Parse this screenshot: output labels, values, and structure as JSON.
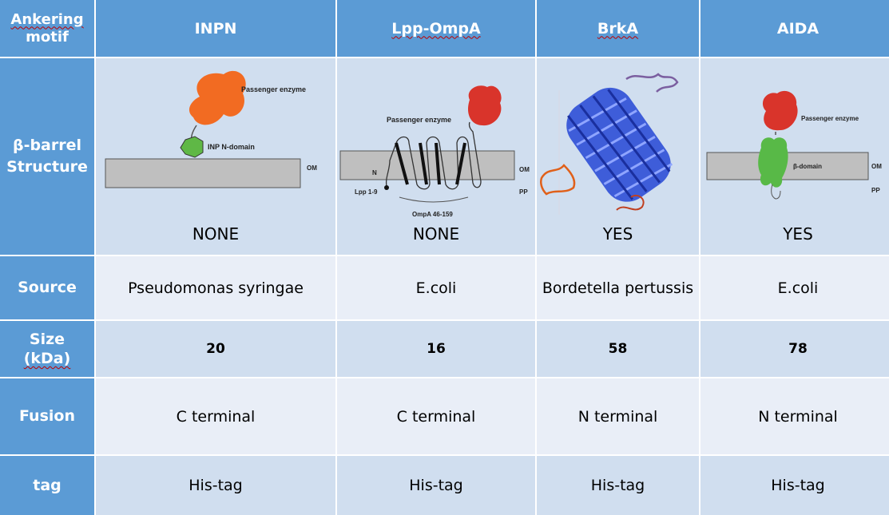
{
  "header": {
    "corner": [
      "Ankering",
      "motif"
    ],
    "columns": [
      "INPN",
      "Lpp-OmpA",
      "BrkA",
      "AIDA"
    ]
  },
  "rows": {
    "structure": {
      "label": [
        "β-barrel",
        "Structure"
      ],
      "values": [
        "NONE",
        "NONE",
        "YES",
        "YES"
      ],
      "diagram_labels": {
        "inpn": {
          "passenger": "Passenger enzyme",
          "domain": "INP N-domain",
          "om": "OM"
        },
        "lpp": {
          "passenger": "Passenger enzyme",
          "n": "N",
          "lpp": "Lpp 1-9",
          "ompa": "OmpA 46-159",
          "om": "OM",
          "pp": "PP"
        },
        "aida": {
          "passenger": "Passenger enzyme",
          "domain": "β-domain",
          "om": "OM",
          "pp": "PP"
        }
      }
    },
    "source": {
      "label": "Source",
      "values": [
        "Pseudomonas syringae",
        "E.coli",
        "Bordetella pertussis",
        "E.coli"
      ]
    },
    "size": {
      "label": [
        "Size",
        "(kDa)"
      ],
      "values": [
        "20",
        "16",
        "58",
        "78"
      ]
    },
    "fusion": {
      "label": "Fusion",
      "values": [
        "C terminal",
        "C terminal",
        "N terminal",
        "N terminal"
      ]
    },
    "tag": {
      "label": "tag",
      "values": [
        "His-tag",
        "His-tag",
        "His-tag",
        "His-tag"
      ]
    }
  },
  "colors": {
    "header_blue": "#5b9bd5",
    "light_cell": "#e9eef7",
    "dark_cell": "#d0deef",
    "membrane_gray": "#bfbfbf",
    "inpn_passenger": "#f26b22",
    "inpn_domain": "#5fb846",
    "red_passenger": "#d9342b",
    "beta_domain": "#58b947",
    "barrel_blue": "#2d4fd6"
  }
}
